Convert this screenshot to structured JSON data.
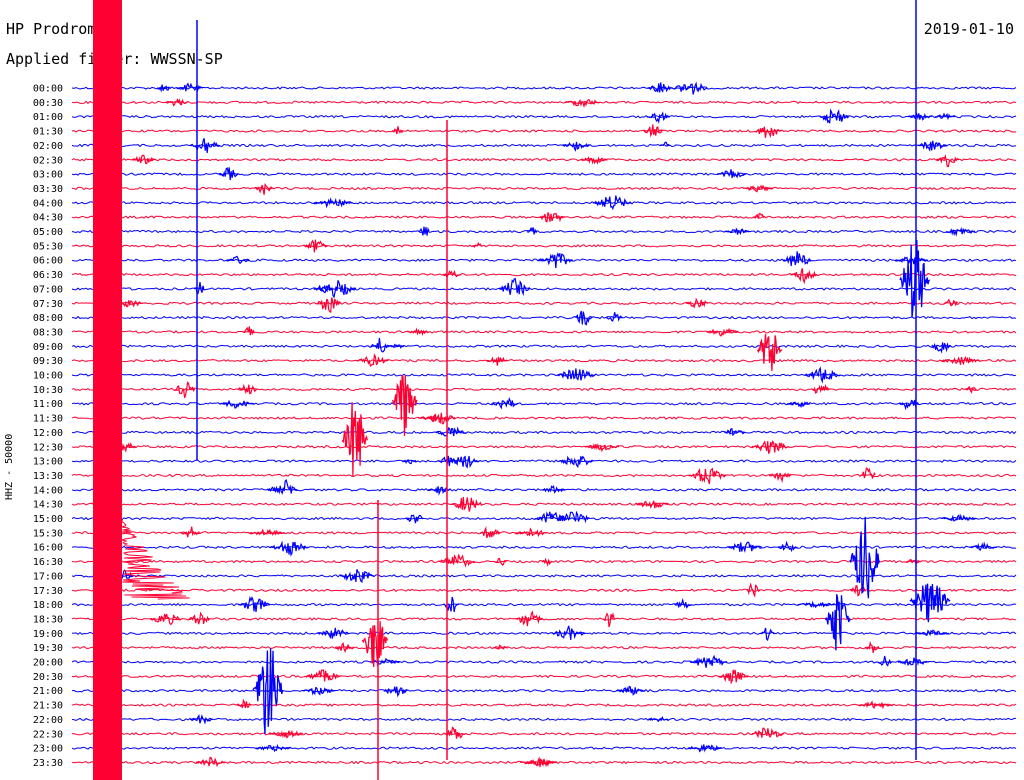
{
  "header": {
    "station": "HP Prodromos",
    "filter_label": "Applied filter: WWSSN-SP",
    "date": "2019-01-10"
  },
  "channel_label": "HHZ - 50000",
  "colors": {
    "even_line": "#0000ff",
    "odd_line": "#ff0033",
    "background": "#ffffff"
  },
  "chart_data": {
    "type": "line",
    "title": "HP Prodromos",
    "subtitle": "Applied filter: WWSSN-SP",
    "date": "2019-01-10",
    "ylabel": "HHZ - 50000",
    "row_labels": [
      "00:00",
      "00:30",
      "01:00",
      "01:30",
      "02:00",
      "02:30",
      "03:00",
      "03:30",
      "04:00",
      "04:30",
      "05:00",
      "05:30",
      "06:00",
      "06:30",
      "07:00",
      "07:30",
      "08:00",
      "08:30",
      "09:00",
      "09:30",
      "10:00",
      "10:30",
      "11:00",
      "11:30",
      "12:00",
      "12:30",
      "13:00",
      "13:30",
      "14:00",
      "14:30",
      "15:00",
      "15:30",
      "16:00",
      "16:30",
      "17:00",
      "17:30",
      "18:00",
      "18:30",
      "19:00",
      "19:30",
      "20:00",
      "20:30",
      "21:00",
      "21:30",
      "22:00",
      "22:30",
      "23:00",
      "23:30"
    ],
    "line_colors": [
      "blue",
      "red"
    ],
    "grid": false
  }
}
